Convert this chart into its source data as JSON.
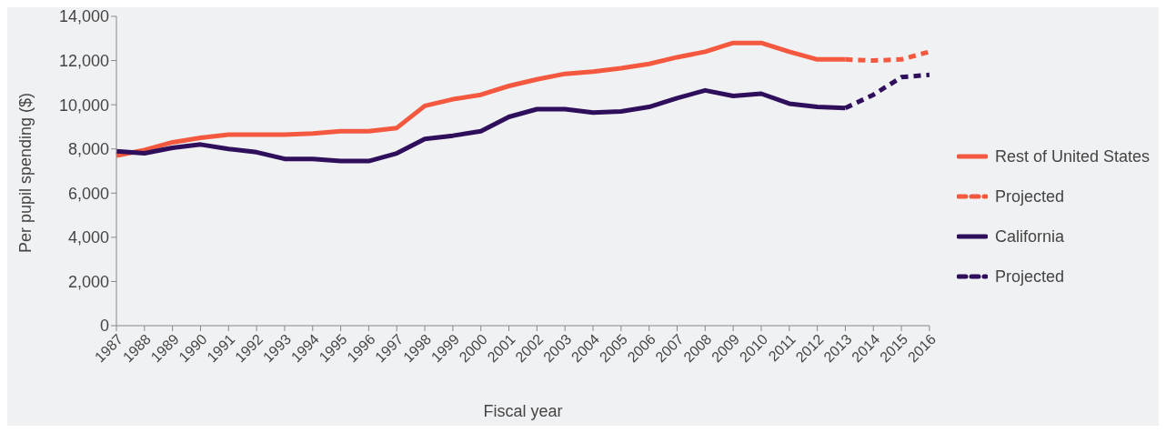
{
  "chart_data": {
    "type": "line",
    "xlabel": "Fiscal year",
    "ylabel": "Per pupil spending ($)",
    "categories": [
      "1987",
      "1988",
      "1989",
      "1990",
      "1991",
      "1992",
      "1993",
      "1994",
      "1995",
      "1996",
      "1997",
      "1998",
      "1999",
      "2000",
      "2001",
      "2002",
      "2003",
      "2004",
      "2005",
      "2006",
      "2007",
      "2008",
      "2009",
      "2010",
      "2011",
      "2012",
      "2013",
      "2014",
      "2015",
      "2016"
    ],
    "series": [
      {
        "name": "Rest of United States",
        "color": "#f4583f",
        "line_style": "solid",
        "values": [
          7700,
          7950,
          8300,
          8500,
          8650,
          8650,
          8650,
          8700,
          8800,
          8800,
          8950,
          9950,
          10250,
          10450,
          10850,
          11150,
          11400,
          11500,
          11650,
          11850,
          12150,
          12400,
          12800,
          12800,
          12400,
          12050,
          12050,
          null,
          null,
          null
        ]
      },
      {
        "name": "Projected",
        "color": "#f4583f",
        "line_style": "dashed",
        "values": [
          null,
          null,
          null,
          null,
          null,
          null,
          null,
          null,
          null,
          null,
          null,
          null,
          null,
          null,
          null,
          null,
          null,
          null,
          null,
          null,
          null,
          null,
          null,
          null,
          null,
          null,
          12050,
          12000,
          12050,
          12400
        ]
      },
      {
        "name": "California",
        "color": "#2f0f5c",
        "line_style": "solid",
        "values": [
          7900,
          7800,
          8050,
          8200,
          8000,
          7850,
          7550,
          7550,
          7450,
          7450,
          7800,
          8450,
          8600,
          8800,
          9450,
          9800,
          9800,
          9650,
          9700,
          9900,
          10300,
          10650,
          10400,
          10500,
          10050,
          9900,
          9850,
          null,
          null,
          null
        ]
      },
      {
        "name": "Projected",
        "color": "#2f0f5c",
        "line_style": "dashed",
        "values": [
          null,
          null,
          null,
          null,
          null,
          null,
          null,
          null,
          null,
          null,
          null,
          null,
          null,
          null,
          null,
          null,
          null,
          null,
          null,
          null,
          null,
          null,
          null,
          null,
          null,
          null,
          9850,
          10450,
          11250,
          11350
        ]
      }
    ],
    "ylim": [
      0,
      14000
    ],
    "yticks": [
      0,
      {
        "value": 2000,
        "label": "2,000"
      },
      {
        "value": 4000,
        "label": "4,000"
      },
      {
        "value": 6000,
        "label": "6,000"
      },
      {
        "value": 8000,
        "label": "8,000"
      },
      {
        "value": 10000,
        "label": "10,000"
      },
      {
        "value": 12000,
        "label": "12,000"
      },
      {
        "value": 14000,
        "label": "14,000"
      }
    ],
    "legend": "right",
    "marker": "none"
  }
}
